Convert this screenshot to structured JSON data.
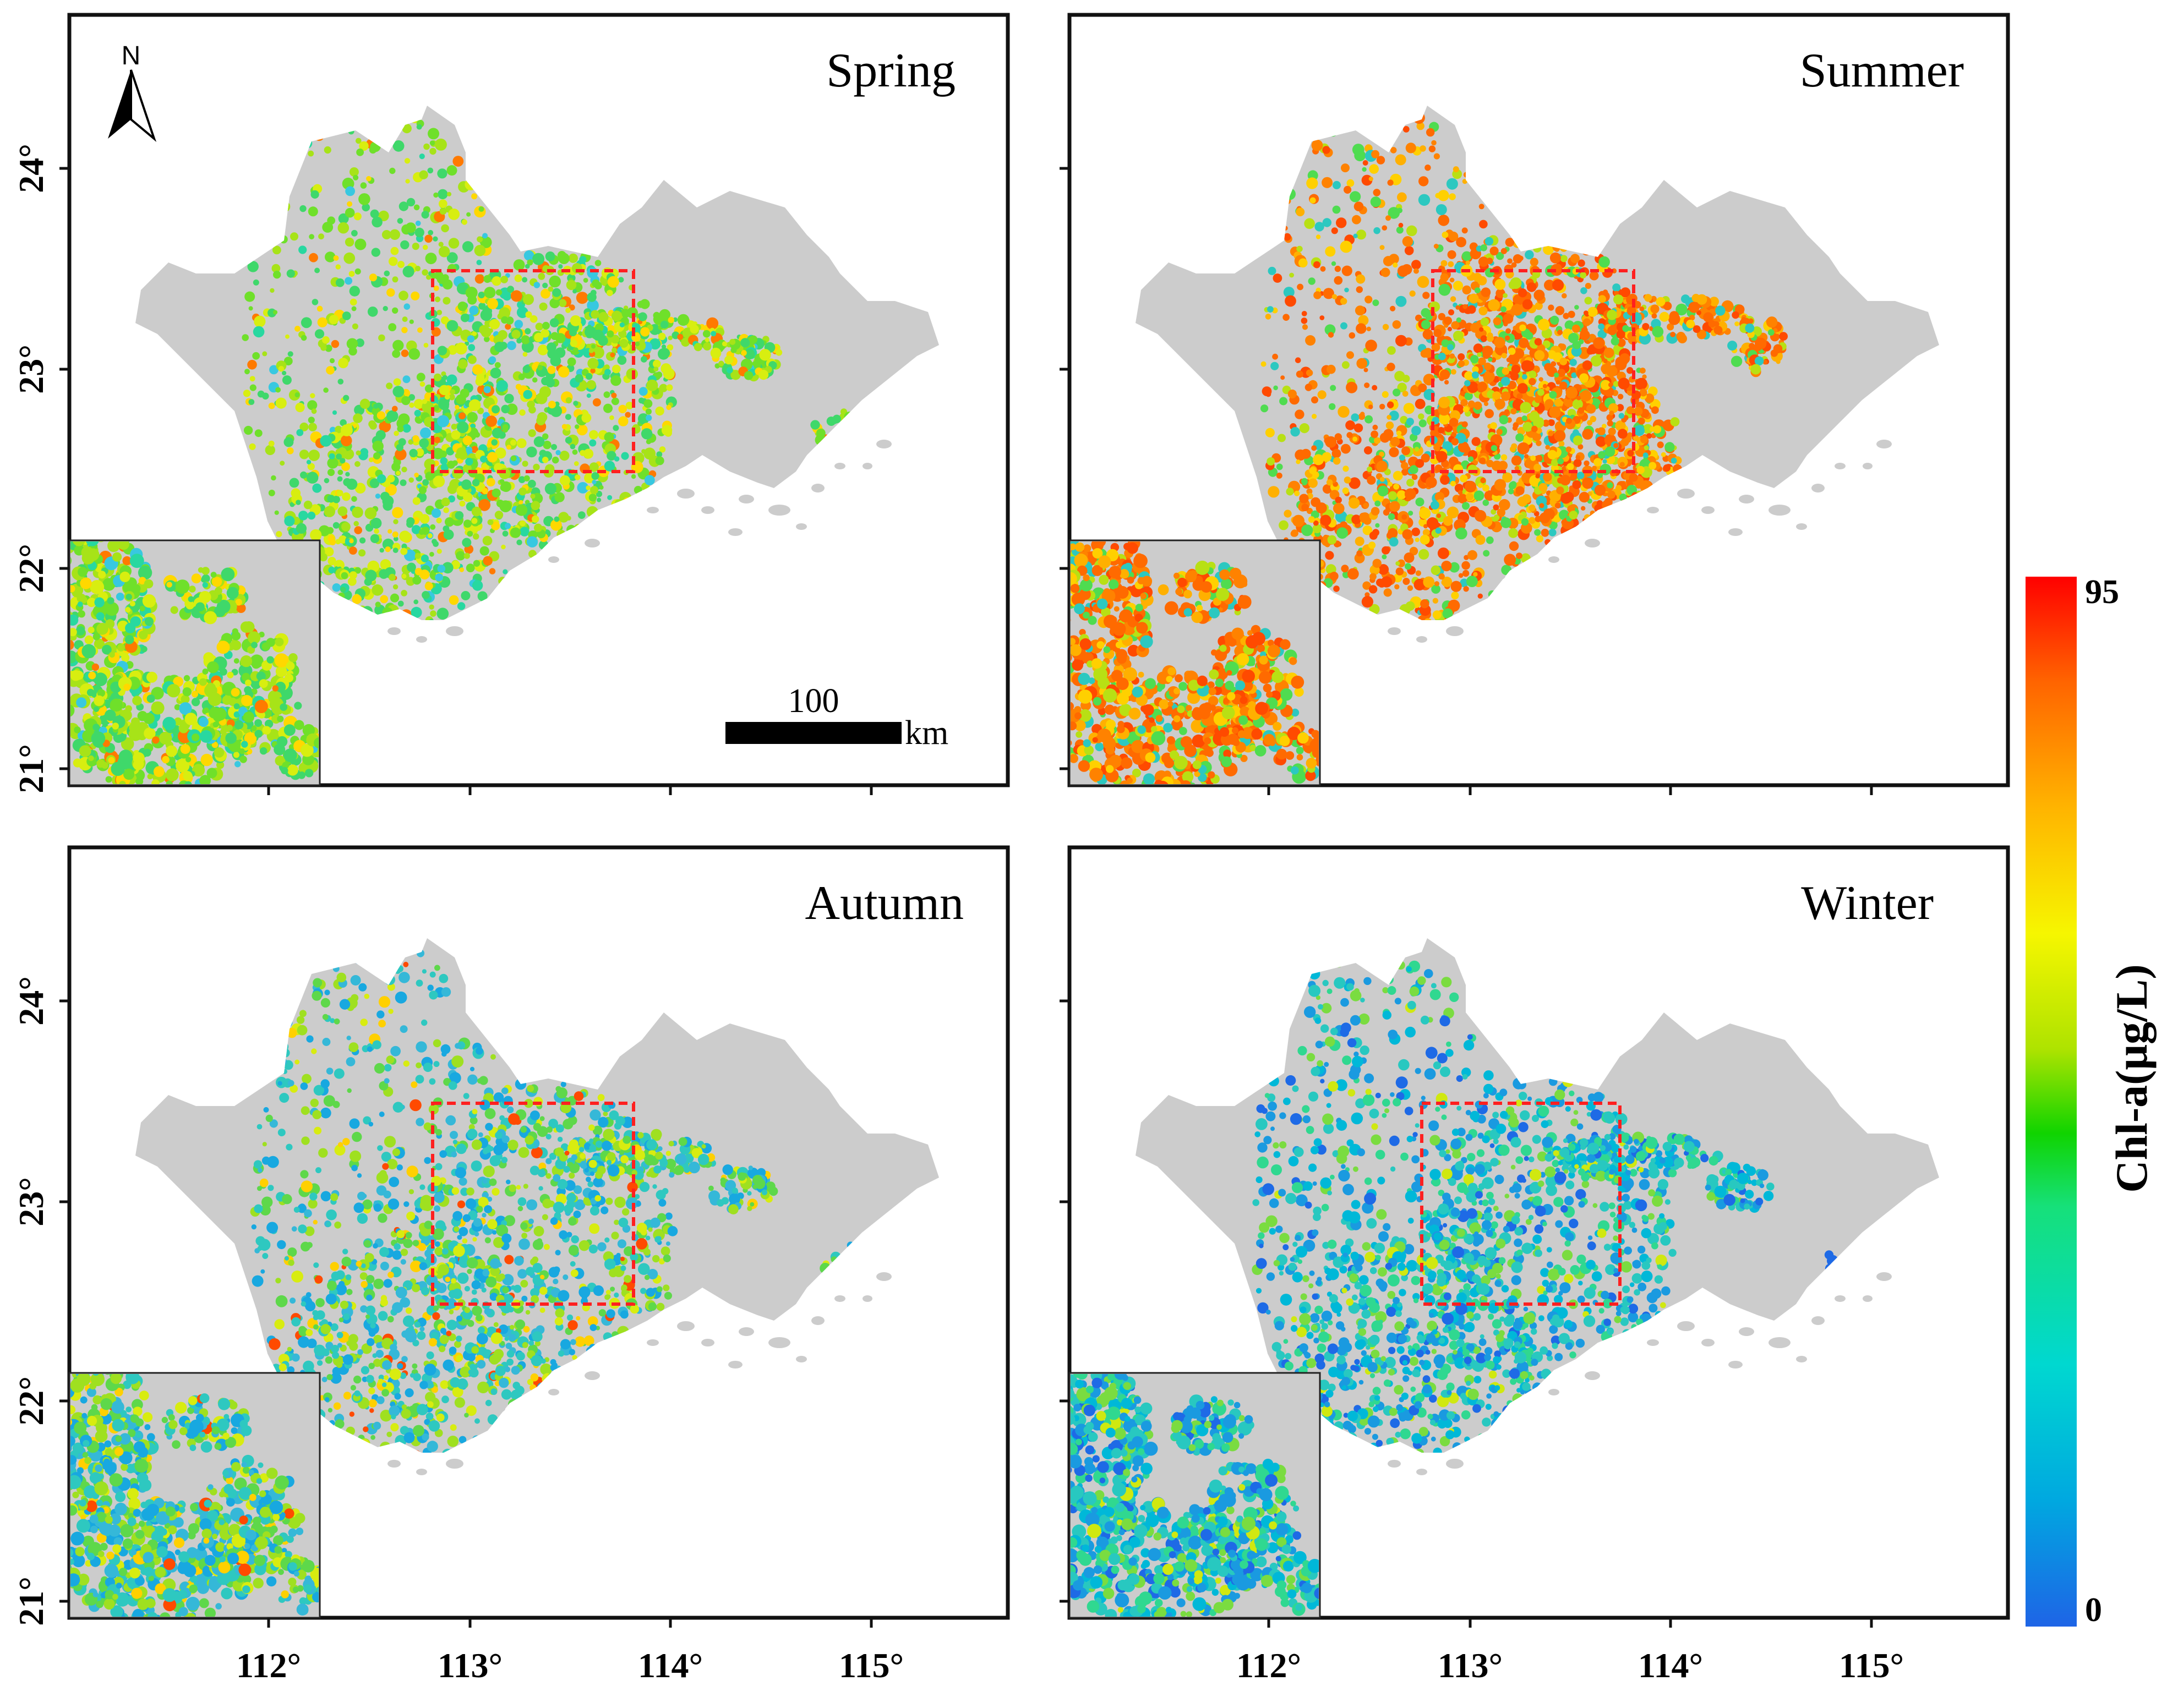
{
  "panels": [
    {
      "id": "spring",
      "title": "Spring",
      "theme": "spring",
      "show_north": true,
      "show_scale": true,
      "show_lat_labels": true,
      "show_lon_labels": false
    },
    {
      "id": "summer",
      "title": "Summer",
      "theme": "summer",
      "show_north": false,
      "show_scale": false,
      "show_lat_labels": false,
      "show_lon_labels": false
    },
    {
      "id": "autumn",
      "title": "Autumn",
      "theme": "autumn",
      "show_north": false,
      "show_scale": false,
      "show_lat_labels": true,
      "show_lon_labels": true
    },
    {
      "id": "winter",
      "title": "Winter",
      "theme": "winter",
      "show_north": false,
      "show_scale": false,
      "show_lat_labels": false,
      "show_lon_labels": true
    }
  ],
  "lat_labels": [
    "24°",
    "23°",
    "22°",
    "21°"
  ],
  "lon_labels": [
    "112°",
    "113°",
    "114°",
    "115°"
  ],
  "north_arrow": {
    "letter": "N"
  },
  "scale_bar": {
    "value": "100",
    "unit": "km"
  },
  "colorbar": {
    "title": "Chl-a(μg/L)",
    "max_label": "95",
    "min_label": "0",
    "colors": [
      "#1e64e6",
      "#00a8e0",
      "#00d8d0",
      "#16e07a",
      "#10d400",
      "#aee300",
      "#f6f600",
      "#ffb400",
      "#ff6400",
      "#ff0000"
    ]
  },
  "land_color": "#cccccc",
  "zoom_box_color": "#ff2020"
}
